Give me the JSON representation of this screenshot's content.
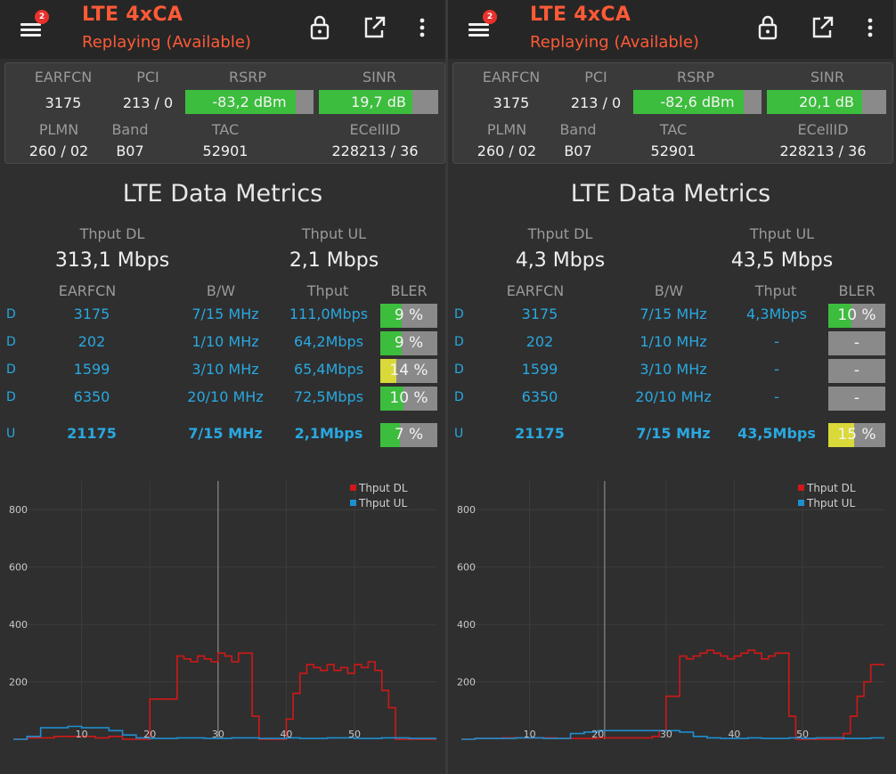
{
  "app": {
    "title": "LTE 4xCA",
    "subtitle": "Replaying (Available)",
    "notif_count": "2"
  },
  "colors": {
    "accent": "#ff5a36",
    "link": "#29a8e0",
    "good": "#3dbd3d",
    "warn": "#d9d93a",
    "na": "#8a8a8a",
    "dl": "#d01818",
    "ul": "#1e8fd0"
  },
  "icons": [
    "menu-icon",
    "lock-icon",
    "external-link-icon",
    "more-vert-icon"
  ],
  "labels": {
    "earfcn": "EARFCN",
    "pci": "PCI",
    "rsrp": "RSRP",
    "sinr": "SINR",
    "plmn": "PLMN",
    "band": "Band",
    "tac": "TAC",
    "ecellid": "ECellID",
    "section_title": "LTE Data Metrics",
    "thput_dl": "Thput DL",
    "thput_ul": "Thput UL",
    "col_earfcn": "EARFCN",
    "col_bw": "B/W",
    "col_thput": "Thput",
    "col_bler": "BLER"
  },
  "panels": [
    {
      "cell": {
        "earfcn": "3175",
        "pci": "213 / 0",
        "rsrp": "-83,2 dBm",
        "rsrp_level": 0.86,
        "sinr": "19,7 dB",
        "sinr_level": 0.78,
        "plmn": "260 / 02",
        "band": "B07",
        "tac": "52901",
        "ecellid": "228213 / 36"
      },
      "thput": {
        "dl": "313,1 Mbps",
        "ul": "2,1 Mbps"
      },
      "carriers": [
        {
          "dir": "D",
          "earfcn": "3175",
          "bw": "7/15 MHz",
          "thput": "111,0Mbps",
          "bler": "9 %",
          "bler_level": 0.38,
          "bler_color": "#3dbd3d"
        },
        {
          "dir": "D",
          "earfcn": "202",
          "bw": "1/10 MHz",
          "thput": "64,2Mbps",
          "bler": "9 %",
          "bler_level": 0.38,
          "bler_color": "#3dbd3d"
        },
        {
          "dir": "D",
          "earfcn": "1599",
          "bw": "3/10 MHz",
          "thput": "65,4Mbps",
          "bler": "14 %",
          "bler_level": 0.28,
          "bler_color": "#d9d93a"
        },
        {
          "dir": "D",
          "earfcn": "6350",
          "bw": "20/10 MHz",
          "thput": "72,5Mbps",
          "bler": "10 %",
          "bler_level": 0.4,
          "bler_color": "#3dbd3d"
        },
        {
          "dir": "U",
          "earfcn": "21175",
          "bw": "7/15 MHz",
          "thput": "2,1Mbps",
          "bler": "7 %",
          "bler_level": 0.34,
          "bler_color": "#3dbd3d"
        }
      ]
    },
    {
      "cell": {
        "earfcn": "3175",
        "pci": "213 / 0",
        "rsrp": "-82,6 dBm",
        "rsrp_level": 0.86,
        "sinr": "20,1 dB",
        "sinr_level": 0.8,
        "plmn": "260 / 02",
        "band": "B07",
        "tac": "52901",
        "ecellid": "228213 / 36"
      },
      "thput": {
        "dl": "4,3 Mbps",
        "ul": "43,5 Mbps"
      },
      "carriers": [
        {
          "dir": "D",
          "earfcn": "3175",
          "bw": "7/15 MHz",
          "thput": "4,3Mbps",
          "bler": "10 %",
          "bler_level": 0.4,
          "bler_color": "#3dbd3d"
        },
        {
          "dir": "D",
          "earfcn": "202",
          "bw": "1/10 MHz",
          "thput": "-",
          "bler": "-",
          "bler_level": 0,
          "bler_color": "#8a8a8a"
        },
        {
          "dir": "D",
          "earfcn": "1599",
          "bw": "3/10 MHz",
          "thput": "-",
          "bler": "-",
          "bler_level": 0,
          "bler_color": "#8a8a8a"
        },
        {
          "dir": "D",
          "earfcn": "6350",
          "bw": "20/10 MHz",
          "thput": "-",
          "bler": "-",
          "bler_level": 0,
          "bler_color": "#8a8a8a"
        },
        {
          "dir": "U",
          "earfcn": "21175",
          "bw": "7/15 MHz",
          "thput": "43,5Mbps",
          "bler": "15 %",
          "bler_level": 0.45,
          "bler_color": "#d9d93a"
        }
      ]
    }
  ],
  "chart_data": [
    {
      "type": "line",
      "legend": [
        "Thput DL",
        "Thput UL"
      ],
      "legend_position": "top-right",
      "grid": true,
      "xlim": [
        0,
        62
      ],
      "ylim": [
        0,
        900
      ],
      "x_ticks": [
        10,
        20,
        30,
        40,
        50
      ],
      "y_ticks": [
        200,
        400,
        600,
        800
      ],
      "cursor_x": 30,
      "series": [
        {
          "name": "Thput DL",
          "step": true,
          "x": [
            0,
            2,
            6,
            8,
            12,
            14,
            16,
            18,
            20,
            21,
            23,
            24,
            25,
            26,
            27,
            28,
            29,
            30,
            31,
            32,
            33,
            34,
            35,
            36,
            37,
            38,
            39,
            40,
            41,
            42,
            43,
            44,
            45,
            46,
            47,
            48,
            49,
            50,
            51,
            52,
            53,
            54,
            55,
            56,
            57,
            58,
            59,
            60,
            61,
            62
          ],
          "y": [
            0,
            5,
            10,
            10,
            5,
            10,
            0,
            0,
            140,
            140,
            140,
            290,
            280,
            270,
            290,
            280,
            270,
            300,
            290,
            270,
            300,
            300,
            80,
            0,
            0,
            0,
            0,
            70,
            160,
            230,
            260,
            250,
            240,
            260,
            240,
            250,
            230,
            260,
            250,
            270,
            240,
            170,
            110,
            0,
            0,
            0,
            0,
            0,
            0,
            0
          ]
        },
        {
          "name": "Thput UL",
          "step": true,
          "x": [
            0,
            2,
            4,
            6,
            8,
            10,
            12,
            14,
            16,
            18,
            20,
            22,
            24,
            26,
            28,
            30,
            32,
            34,
            36,
            38,
            40,
            42,
            44,
            46,
            48,
            50,
            52,
            54,
            56,
            58,
            60,
            62
          ],
          "y": [
            0,
            10,
            40,
            40,
            45,
            40,
            40,
            30,
            15,
            5,
            3,
            3,
            5,
            5,
            3,
            3,
            5,
            5,
            3,
            3,
            5,
            3,
            3,
            5,
            5,
            3,
            3,
            5,
            5,
            3,
            3,
            3
          ]
        }
      ]
    },
    {
      "type": "line",
      "legend": [
        "Thput DL",
        "Thput UL"
      ],
      "legend_position": "top-right",
      "grid": true,
      "xlim": [
        0,
        62
      ],
      "ylim": [
        0,
        900
      ],
      "x_ticks": [
        10,
        20,
        30,
        40,
        50
      ],
      "y_ticks": [
        200,
        400,
        600,
        800
      ],
      "cursor_x": 21,
      "series": [
        {
          "name": "Thput DL",
          "step": true,
          "x": [
            0,
            2,
            6,
            10,
            14,
            18,
            20,
            22,
            24,
            26,
            28,
            29,
            30,
            31,
            32,
            33,
            34,
            35,
            36,
            37,
            38,
            39,
            40,
            41,
            42,
            43,
            44,
            45,
            46,
            47,
            48,
            49,
            50,
            51,
            52,
            53,
            54,
            55,
            56,
            57,
            58,
            59,
            60,
            61,
            62
          ],
          "y": [
            0,
            3,
            5,
            5,
            3,
            3,
            5,
            5,
            5,
            5,
            10,
            30,
            150,
            150,
            290,
            280,
            290,
            300,
            310,
            300,
            290,
            280,
            290,
            300,
            310,
            300,
            280,
            290,
            300,
            300,
            80,
            0,
            0,
            0,
            0,
            0,
            0,
            0,
            20,
            80,
            150,
            200,
            260,
            260,
            260
          ]
        },
        {
          "name": "Thput UL",
          "step": true,
          "x": [
            0,
            2,
            4,
            6,
            8,
            10,
            12,
            14,
            16,
            18,
            20,
            22,
            24,
            26,
            28,
            30,
            32,
            34,
            36,
            38,
            40,
            42,
            44,
            46,
            48,
            50,
            52,
            54,
            56,
            58,
            60,
            62
          ],
          "y": [
            0,
            3,
            3,
            3,
            5,
            5,
            3,
            3,
            20,
            25,
            30,
            30,
            30,
            30,
            30,
            30,
            25,
            10,
            5,
            3,
            3,
            5,
            3,
            3,
            5,
            3,
            5,
            5,
            3,
            3,
            5,
            5
          ]
        }
      ]
    }
  ]
}
